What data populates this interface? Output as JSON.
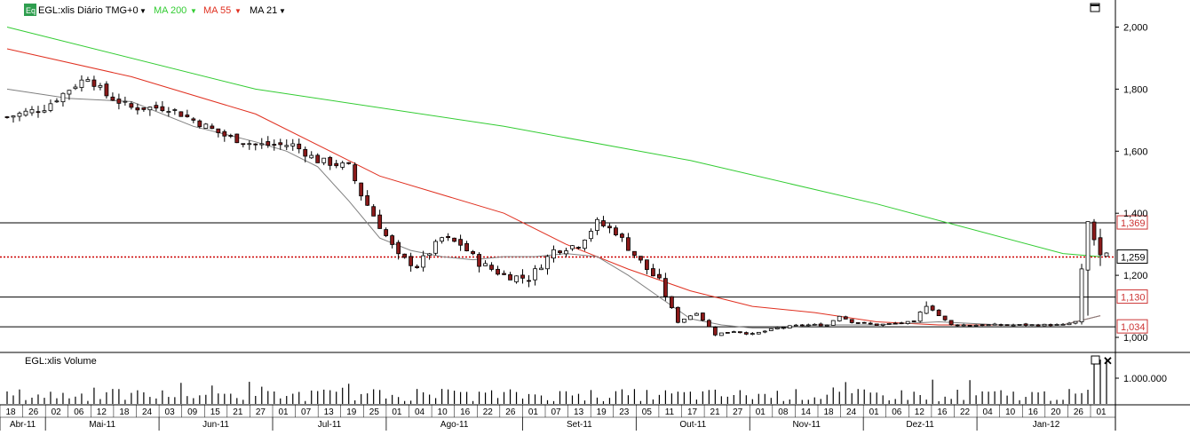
{
  "header": {
    "badge": "Eq",
    "instrument": "EGL:xlis Diário TMG+0",
    "ma200": "MA 200",
    "ma55": "MA 55",
    "ma21": "MA 21"
  },
  "volume_panel": {
    "title": "EGL:xlis Volume",
    "tick_label": "1.000.000"
  },
  "colors": {
    "ma200": "#33cc33",
    "ma55": "#e03020",
    "ma21": "#808080",
    "bear_body": "#8b1a1a",
    "bull_body": "#ffffff",
    "dotted_level": "#cc0000",
    "badge_bg": "#2f9e4f"
  },
  "chart_data": {
    "type": "candlestick",
    "y_ticks": [
      "1,000",
      "1,200",
      "1,400",
      "1,600",
      "1,800",
      "2,000"
    ],
    "ylim": [
      0.96,
      2.03
    ],
    "horizontal_levels": [
      {
        "label": "1,369",
        "value": 1.369,
        "style": "solid"
      },
      {
        "label": "1,259",
        "value": 1.259,
        "style": "dotted"
      },
      {
        "label": "1,130",
        "value": 1.13,
        "style": "solid"
      },
      {
        "label": "1,034",
        "value": 1.034,
        "style": "solid"
      }
    ],
    "x_day_labels": [
      "18",
      "26",
      "02",
      "06",
      "12",
      "18",
      "24",
      "03",
      "09",
      "15",
      "21",
      "27",
      "01",
      "07",
      "13",
      "19",
      "25",
      "01",
      "04",
      "10",
      "16",
      "22",
      "26",
      "01",
      "07",
      "13",
      "19",
      "23",
      "05",
      "11",
      "17",
      "21",
      "27",
      "01",
      "08",
      "14",
      "18",
      "24",
      "01",
      "06",
      "12",
      "16",
      "22",
      "04",
      "10",
      "16",
      "20",
      "26",
      "01"
    ],
    "x_month_labels": [
      "Abr-11",
      "Mai-11",
      "Jun-11",
      "Jul-11",
      "Ago-11",
      "Set-11",
      "Out-11",
      "Nov-11",
      "Dez-11",
      "Jan-12"
    ],
    "close_path": [
      [
        0,
        1.71
      ],
      [
        6,
        1.74
      ],
      [
        10,
        1.8
      ],
      [
        13,
        1.84
      ],
      [
        16,
        1.78
      ],
      [
        20,
        1.74
      ],
      [
        26,
        1.74
      ],
      [
        30,
        1.7
      ],
      [
        35,
        1.65
      ],
      [
        40,
        1.62
      ],
      [
        46,
        1.62
      ],
      [
        50,
        1.57
      ],
      [
        55,
        1.55
      ],
      [
        57,
        1.46
      ],
      [
        60,
        1.36
      ],
      [
        63,
        1.26
      ],
      [
        66,
        1.23
      ],
      [
        70,
        1.32
      ],
      [
        73,
        1.3
      ],
      [
        76,
        1.24
      ],
      [
        80,
        1.2
      ],
      [
        84,
        1.19
      ],
      [
        88,
        1.28
      ],
      [
        92,
        1.3
      ],
      [
        95,
        1.37
      ],
      [
        98,
        1.34
      ],
      [
        100,
        1.29
      ],
      [
        103,
        1.22
      ],
      [
        105,
        1.18
      ],
      [
        108,
        1.05
      ],
      [
        111,
        1.08
      ],
      [
        114,
        1.01
      ],
      [
        117,
        1.02
      ],
      [
        120,
        1.01
      ],
      [
        124,
        1.03
      ],
      [
        128,
        1.04
      ],
      [
        132,
        1.04
      ],
      [
        134,
        1.07
      ],
      [
        136,
        1.05
      ],
      [
        140,
        1.04
      ],
      [
        146,
        1.05
      ],
      [
        148,
        1.11
      ],
      [
        150,
        1.07
      ],
      [
        152,
        1.04
      ],
      [
        156,
        1.04
      ],
      [
        160,
        1.04
      ],
      [
        164,
        1.04
      ],
      [
        170,
        1.04
      ],
      [
        172,
        1.05
      ],
      [
        174,
        1.37
      ],
      [
        176,
        1.26
      ],
      [
        177,
        1.26
      ]
    ],
    "ma200_path": [
      [
        0,
        2.0
      ],
      [
        40,
        1.8
      ],
      [
        80,
        1.68
      ],
      [
        110,
        1.57
      ],
      [
        140,
        1.43
      ],
      [
        170,
        1.27
      ],
      [
        176,
        1.26
      ]
    ],
    "ma55_path": [
      [
        0,
        1.93
      ],
      [
        20,
        1.84
      ],
      [
        40,
        1.72
      ],
      [
        60,
        1.52
      ],
      [
        80,
        1.4
      ],
      [
        90,
        1.3
      ],
      [
        100,
        1.22
      ],
      [
        110,
        1.15
      ],
      [
        120,
        1.1
      ],
      [
        130,
        1.08
      ],
      [
        140,
        1.05
      ],
      [
        150,
        1.04
      ],
      [
        160,
        1.04
      ],
      [
        170,
        1.04
      ],
      [
        176,
        1.07
      ]
    ],
    "ma21_path": [
      [
        0,
        1.8
      ],
      [
        10,
        1.77
      ],
      [
        20,
        1.76
      ],
      [
        30,
        1.68
      ],
      [
        40,
        1.63
      ],
      [
        45,
        1.6
      ],
      [
        50,
        1.55
      ],
      [
        55,
        1.44
      ],
      [
        60,
        1.32
      ],
      [
        65,
        1.28
      ],
      [
        70,
        1.26
      ],
      [
        75,
        1.25
      ],
      [
        80,
        1.26
      ],
      [
        85,
        1.26
      ],
      [
        90,
        1.27
      ],
      [
        95,
        1.26
      ],
      [
        100,
        1.2
      ],
      [
        105,
        1.13
      ],
      [
        110,
        1.06
      ],
      [
        115,
        1.04
      ],
      [
        120,
        1.03
      ],
      [
        125,
        1.03
      ],
      [
        130,
        1.04
      ],
      [
        140,
        1.04
      ],
      [
        150,
        1.05
      ],
      [
        160,
        1.04
      ],
      [
        170,
        1.04
      ],
      [
        176,
        1.07
      ]
    ],
    "volume_spike_last": true
  }
}
